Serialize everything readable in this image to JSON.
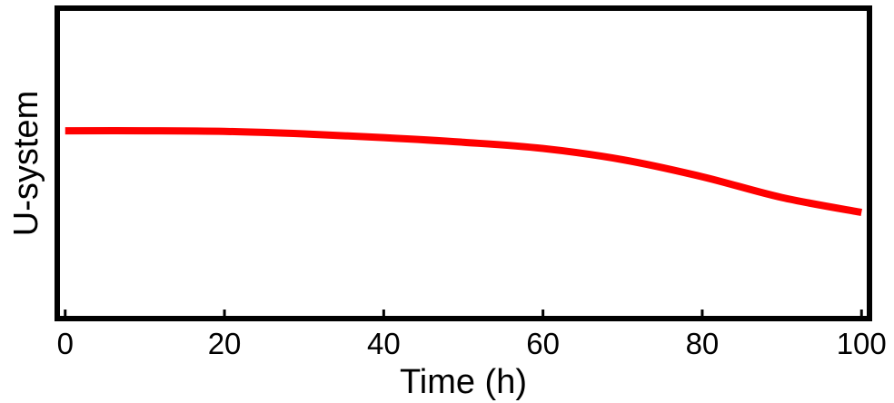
{
  "chart_data": {
    "type": "line",
    "xlabel": "Time (h)",
    "ylabel": "U-system",
    "xlim": [
      -1,
      101
    ],
    "ylim": [
      0,
      1
    ],
    "xticks": [
      0,
      20,
      40,
      60,
      80,
      100
    ],
    "xtick_labels": [
      "0",
      "20",
      "40",
      "60",
      "80",
      "100"
    ],
    "yticks_shown": false,
    "grid": false,
    "series": [
      {
        "color": "#ff0000",
        "x": [
          0,
          10,
          20,
          30,
          40,
          50,
          60,
          70,
          80,
          90,
          100
        ],
        "y": [
          0.605,
          0.605,
          0.603,
          0.595,
          0.583,
          0.568,
          0.548,
          0.512,
          0.457,
          0.39,
          0.342
        ]
      }
    ]
  }
}
